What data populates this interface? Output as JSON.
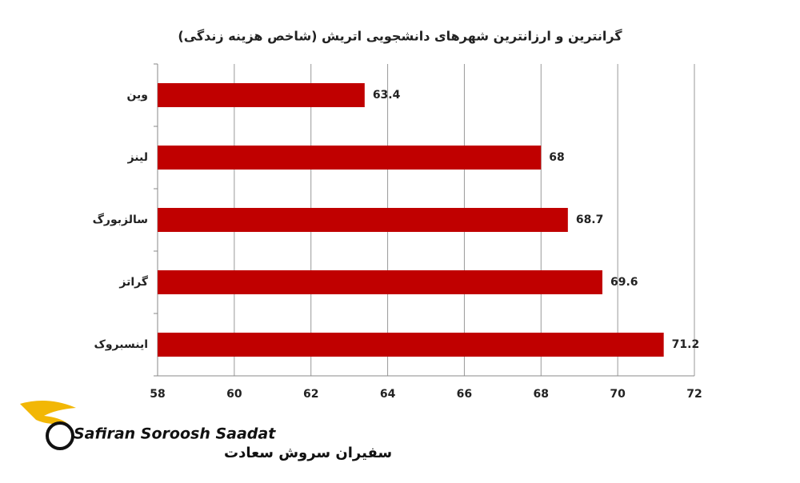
{
  "chart_data": {
    "type": "bar",
    "orientation": "horizontal",
    "title": "گرانترین و ارزانترین شهرهای دانشجویی اتریش (شاخص هزینه زندگی)",
    "categories": [
      "وین",
      "لینز",
      "سالزبورگ",
      "گراتز",
      "اینسبروک"
    ],
    "values": [
      63.4,
      68,
      68.7,
      69.6,
      71.2
    ],
    "color": "#c00000",
    "xlim": [
      58,
      72
    ],
    "xticks": [
      58,
      60,
      62,
      64,
      66,
      68,
      70,
      72
    ],
    "grid": true
  },
  "logo": {
    "latin": "Safiran Soroosh Saadat",
    "persian": "سفیران سروش سعادت"
  }
}
